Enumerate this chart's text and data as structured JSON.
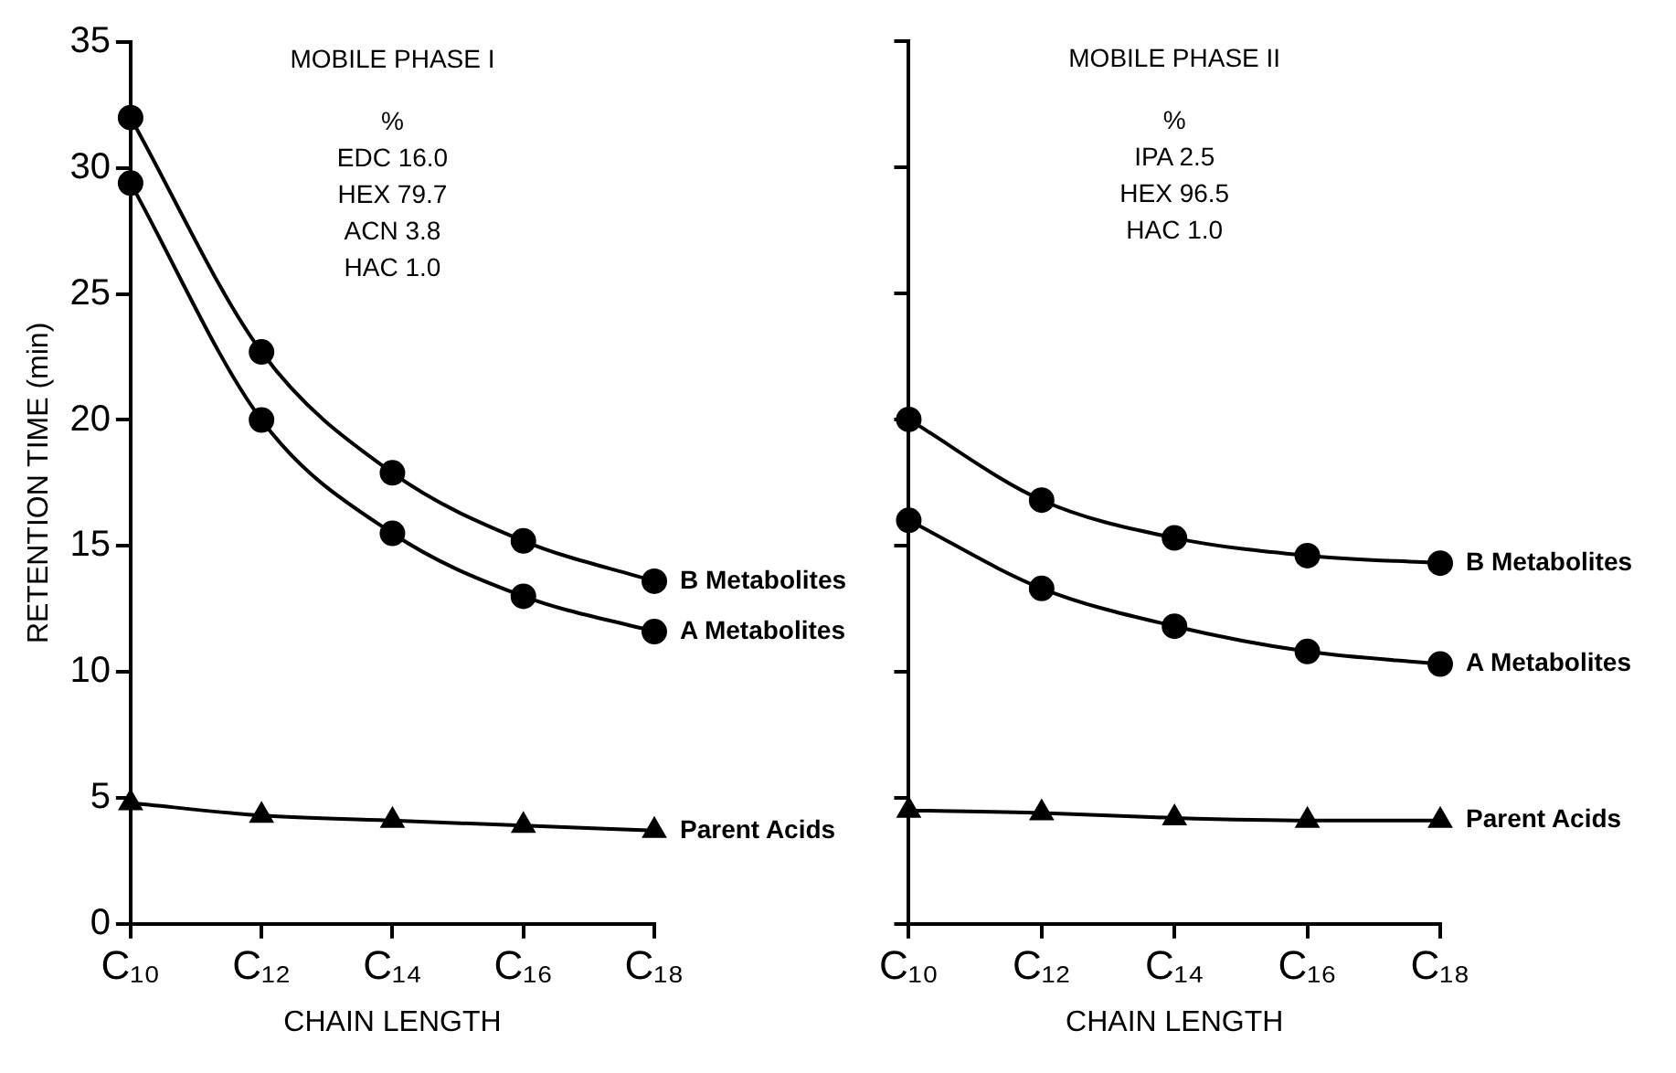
{
  "chart_data": [
    {
      "type": "line",
      "categories": [
        "C₁₀",
        "C₁₂",
        "C₁₄",
        "C₁₆",
        "C₁₈"
      ],
      "xlabel": "CHAIN LENGTH",
      "ylabel": "RETENTION TIME (min)",
      "ylim": [
        0,
        35
      ],
      "yticks": [
        0,
        5,
        10,
        15,
        20,
        25,
        30,
        35
      ],
      "grid": false,
      "legend": "right",
      "marker": "circle",
      "line_style": "solid",
      "annotations": [
        "MOBILE PHASE I",
        "%",
        "EDC 16.0",
        "HEX 79.7",
        "ACN 3.8",
        "HAC 1.0"
      ],
      "series": [
        {
          "name": "B Metabolites",
          "color": "#000000",
          "values": [
            32,
            22.7,
            17.9,
            15.2,
            13.6
          ]
        },
        {
          "name": "A Metabolites",
          "color": "#000000",
          "values": [
            29.4,
            20,
            15.5,
            13,
            11.6
          ]
        },
        {
          "name": "Parent Acids",
          "color": "#000000",
          "marker": "triangle",
          "values": [
            4.8,
            4.3,
            4.1,
            3.9,
            3.7
          ]
        }
      ]
    },
    {
      "type": "line",
      "categories": [
        "C₁₀",
        "C₁₂",
        "C₁₄",
        "C₁₆",
        "C₁₈"
      ],
      "xlabel": "CHAIN LENGTH",
      "ylim": [
        0,
        35
      ],
      "yticks": [
        0,
        5,
        10,
        15,
        20,
        25,
        30,
        35
      ],
      "tick_labels": "x",
      "grid": false,
      "legend": "right",
      "marker": "circle",
      "line_style": "solid",
      "annotations": [
        "MOBILE PHASE II",
        "%",
        "IPA 2.5",
        "HEX 96.5",
        "HAC 1.0"
      ],
      "series": [
        {
          "name": "B Metabolites",
          "color": "#000000",
          "values": [
            20,
            16.8,
            15.3,
            14.6,
            14.3
          ]
        },
        {
          "name": "A Metabolites",
          "color": "#000000",
          "values": [
            16,
            13.3,
            11.8,
            10.8,
            10.3
          ]
        },
        {
          "name": "Parent Acids",
          "color": "#000000",
          "marker": "triangle",
          "values": [
            4.5,
            4.4,
            4.2,
            4.1,
            4.1
          ]
        }
      ]
    }
  ]
}
